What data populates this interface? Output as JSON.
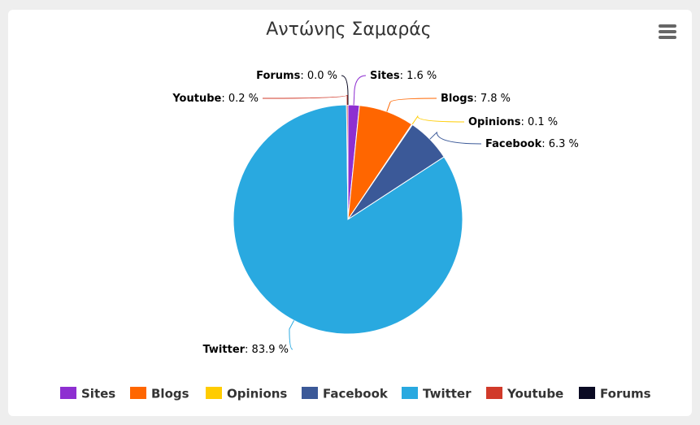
{
  "chart_data": {
    "type": "pie",
    "title": "Αντώνης Σαμαράς",
    "categories": [
      "Sites",
      "Blogs",
      "Opinions",
      "Facebook",
      "Twitter",
      "Youtube",
      "Forums"
    ],
    "values": [
      1.6,
      7.8,
      0.1,
      6.3,
      83.9,
      0.2,
      0.0
    ],
    "value_labels": [
      ": 1.6 %",
      ": 7.8 %",
      ": 0.1 %",
      ": 6.3 %",
      ": 83.9 %",
      ": 0.2 %",
      ": 0.0 %"
    ],
    "colors": [
      "#8e2fd1",
      "#ff6600",
      "#ffcc00",
      "#3b5998",
      "#29a9e0",
      "#d13a2a",
      "#0a0a23"
    ],
    "legend": "bottom"
  }
}
